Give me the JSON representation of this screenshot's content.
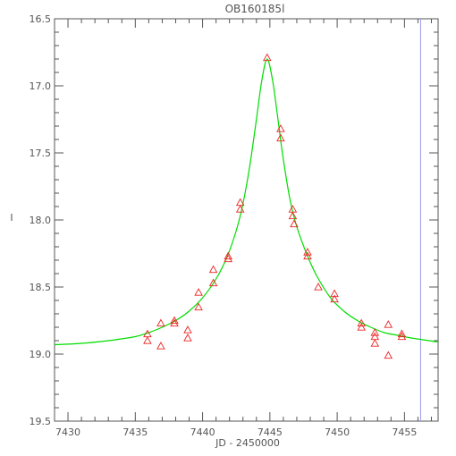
{
  "chart_data": {
    "type": "scatter",
    "title": "OB160185l",
    "xlabel": "JD - 2450000",
    "ylabel": "I",
    "xlim": [
      7429,
      7457.5
    ],
    "ylim": [
      19.5,
      16.5
    ],
    "y_inverted": true,
    "grid": false,
    "x_ticks": [
      7430,
      7435,
      7440,
      7445,
      7450,
      7455
    ],
    "x_tick_labels": [
      "7430",
      "7435",
      "7440",
      "7445",
      "7450",
      "7455"
    ],
    "y_ticks": [
      16.5,
      17.0,
      17.5,
      18.0,
      18.5,
      19.0,
      19.5
    ],
    "y_tick_labels": [
      "16.5",
      "17.0",
      "17.5",
      "18.0",
      "18.5",
      "19.0",
      "19.5"
    ],
    "model_curve": {
      "color": "#00dd00",
      "x": [
        7429,
        7431,
        7433,
        7435,
        7436,
        7437,
        7438,
        7439,
        7440,
        7441,
        7441.8,
        7442.5,
        7443,
        7443.5,
        7444,
        7444.4,
        7444.8,
        7445.2,
        7445.6,
        7446,
        7446.5,
        7447,
        7447.8,
        7448.5,
        7449.5,
        7450.5,
        7451.5,
        7452.5,
        7453.5,
        7454.5,
        7455.5,
        7457.5
      ],
      "y": [
        18.93,
        18.92,
        18.9,
        18.87,
        18.84,
        18.8,
        18.75,
        18.68,
        18.58,
        18.44,
        18.28,
        18.08,
        17.88,
        17.6,
        17.25,
        16.96,
        16.8,
        16.96,
        17.25,
        17.55,
        17.85,
        18.05,
        18.27,
        18.42,
        18.58,
        18.68,
        18.75,
        18.8,
        18.84,
        18.86,
        18.88,
        18.91
      ]
    },
    "observations": {
      "color": "#ee2222",
      "marker": "triangle",
      "x": [
        7435.9,
        7435.9,
        7436.9,
        7436.9,
        7437.9,
        7437.9,
        7438.9,
        7438.9,
        7439.7,
        7439.7,
        7440.8,
        7440.8,
        7441.9,
        7441.9,
        7442.8,
        7442.8,
        7444.8,
        7445.8,
        7445.8,
        7446.7,
        7446.7,
        7446.8,
        7447.8,
        7447.8,
        7448.6,
        7449.8,
        7449.8,
        7451.8,
        7451.8,
        7452.8,
        7452.8,
        7452.8,
        7453.8,
        7453.8,
        7454.8,
        7454.8
      ],
      "y": [
        18.85,
        18.9,
        18.77,
        18.94,
        18.75,
        18.77,
        18.82,
        18.88,
        18.54,
        18.65,
        18.37,
        18.47,
        18.27,
        18.29,
        17.87,
        17.92,
        16.79,
        17.32,
        17.39,
        17.92,
        17.97,
        18.03,
        18.24,
        18.27,
        18.5,
        18.55,
        18.59,
        18.77,
        18.8,
        18.84,
        18.87,
        18.92,
        18.78,
        19.01,
        18.85,
        18.87
      ]
    },
    "vertical_marker": {
      "x": 7456.2,
      "color": "#9999ee"
    }
  }
}
